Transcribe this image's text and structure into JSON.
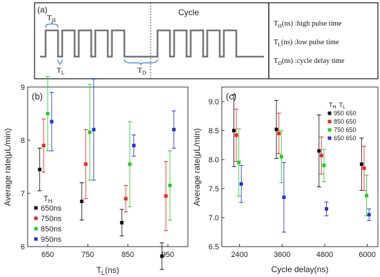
{
  "panel_a": {
    "tag": "(a)",
    "cycle_label": "Cycle",
    "th_label": "T",
    "th_sub": "H",
    "tl_label": "T",
    "tl_sub": "L",
    "td_label": "T",
    "td_sub": "D",
    "legend": [
      {
        "sym": "T",
        "sub": "H",
        "text": "(ns) :high pulse time"
      },
      {
        "sym": "T",
        "sub": "L",
        "text": "(ns) :low pulse time"
      },
      {
        "sym": "T",
        "sub": "D",
        "text": "(ns) :cycle delay time"
      }
    ],
    "colors": {
      "wave": "#777777",
      "brace": "#3a7bd5"
    }
  },
  "chart_data": [
    {
      "type": "scatter",
      "panel_tag": "(b)",
      "xlabel_main": "T",
      "xlabel_sub": "L",
      "xlabel_unit": "(ns)",
      "ylabel": "Average rate(μL/min)",
      "xlim": [
        600,
        1000
      ],
      "ylim": [
        6,
        9
      ],
      "x_ticks": [
        650,
        750,
        850,
        950
      ],
      "y_ticks": [
        6,
        7,
        8,
        9
      ],
      "legend_title_main": "T",
      "legend_title_sub": "H",
      "legend_position": "lower-left",
      "series": [
        {
          "name": "650ns",
          "color": "#111111",
          "x": [
            630,
            735,
            835,
            935
          ],
          "y": [
            7.45,
            6.85,
            6.45,
            5.82
          ],
          "err": [
            0.4,
            0.35,
            0.25,
            0.25
          ]
        },
        {
          "name": "750ns",
          "color": "#ee2222",
          "x": [
            640,
            745,
            845,
            945
          ],
          "y": [
            7.9,
            7.55,
            6.9,
            6.95
          ],
          "err": [
            0.5,
            0.65,
            0.25,
            0.65
          ]
        },
        {
          "name": "850ns",
          "color": "#22cc22",
          "x": [
            650,
            755,
            855,
            955
          ],
          "y": [
            8.5,
            8.15,
            7.55,
            7.15
          ],
          "err": [
            0.7,
            0.9,
            0.8,
            0.65
          ]
        },
        {
          "name": "950ns",
          "color": "#2233dd",
          "x": [
            660,
            765,
            865,
            965
          ],
          "y": [
            8.35,
            8.2,
            7.9,
            8.2
          ],
          "err": [
            0.55,
            0.95,
            0.2,
            0.35
          ]
        }
      ]
    },
    {
      "type": "scatter",
      "panel_tag": "(c)",
      "xlabel": "Cycle delay(ns)",
      "ylabel": "Average rate(μL/min)",
      "xlim": [
        1900,
        6300
      ],
      "ylim": [
        6.5,
        9.25
      ],
      "x_ticks": [
        2400,
        3600,
        4800,
        6000
      ],
      "y_ticks": [
        6.5,
        7.0,
        7.5,
        8.0,
        8.5,
        9.0
      ],
      "legend_title_main_1": "T",
      "legend_title_sub_1": "H",
      "legend_title_main_2": "T",
      "legend_title_sub_2": "L",
      "legend_position": "top-right",
      "series": [
        {
          "name": "950 650",
          "color": "#111111",
          "x": [
            2240,
            3440,
            4640,
            5840
          ],
          "y": [
            8.5,
            8.52,
            8.15,
            7.92
          ],
          "err": [
            0.62,
            0.5,
            0.62,
            0.45
          ]
        },
        {
          "name": "850 650",
          "color": "#ee2222",
          "x": [
            2310,
            3510,
            4710,
            5910
          ],
          "y": [
            8.42,
            8.45,
            8.07,
            7.85
          ],
          "err": [
            0.45,
            0.35,
            0.32,
            0.38
          ]
        },
        {
          "name": "750 650",
          "color": "#22cc22",
          "x": [
            2380,
            3580,
            4780,
            5980
          ],
          "y": [
            7.95,
            8.05,
            7.9,
            7.38
          ],
          "err": [
            0.58,
            0.45,
            0.28,
            0.35
          ]
        },
        {
          "name": "650 650",
          "color": "#2233dd",
          "x": [
            2450,
            3650,
            4850,
            6050
          ],
          "y": [
            7.58,
            7.35,
            7.15,
            7.05
          ],
          "err": [
            0.32,
            0.6,
            0.12,
            0.1
          ]
        }
      ]
    }
  ]
}
